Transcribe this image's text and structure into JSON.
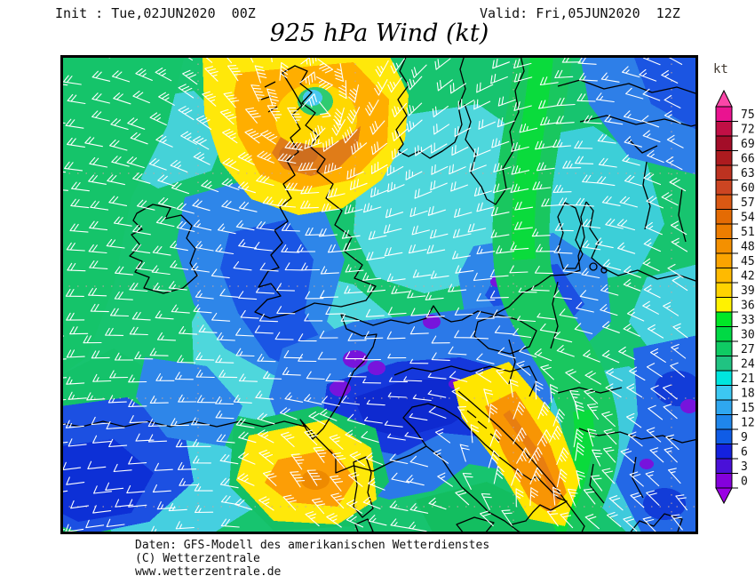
{
  "header": {
    "init": "Init : Tue,02JUN2020  00Z",
    "valid": "Valid: Fri,05JUN2020  12Z"
  },
  "title": "925 hPa Wind (kt)",
  "legend": {
    "unit": "kt",
    "arrow_top_color": "#FA46A8",
    "arrow_bottom_color": "#9B00E4",
    "entries": [
      {
        "value": 75,
        "color": "#EA1390"
      },
      {
        "value": 72,
        "color": "#C10F45"
      },
      {
        "value": 69,
        "color": "#A30D28"
      },
      {
        "value": 66,
        "color": "#AD1B1F"
      },
      {
        "value": 63,
        "color": "#BD3220"
      },
      {
        "value": 60,
        "color": "#CC4522"
      },
      {
        "value": 57,
        "color": "#DA5813"
      },
      {
        "value": 54,
        "color": "#E46B04"
      },
      {
        "value": 51,
        "color": "#ED7D00"
      },
      {
        "value": 48,
        "color": "#F49000"
      },
      {
        "value": 45,
        "color": "#FBA400"
      },
      {
        "value": 42,
        "color": "#FFBA00"
      },
      {
        "value": 39,
        "color": "#FFD300"
      },
      {
        "value": 36,
        "color": "#FFF200"
      },
      {
        "value": 33,
        "color": "#00E726"
      },
      {
        "value": 30,
        "color": "#00D944"
      },
      {
        "value": 27,
        "color": "#0FCB63"
      },
      {
        "value": 24,
        "color": "#20C382"
      },
      {
        "value": 21,
        "color": "#00E5DE"
      },
      {
        "value": 18,
        "color": "#3CC8F2"
      },
      {
        "value": 15,
        "color": "#2FA7F0"
      },
      {
        "value": 12,
        "color": "#1F86EB"
      },
      {
        "value": 9,
        "color": "#0F5CE6"
      },
      {
        "value": 6,
        "color": "#1421DE"
      },
      {
        "value": 3,
        "color": "#4A10D8"
      },
      {
        "value": 0,
        "color": "#8400DC"
      }
    ]
  },
  "map": {
    "parameter": "925 hPa wind speed (kt) with wind barbs over Europe",
    "model": "GFS",
    "barb_color": "#FFFFFF",
    "coast_color": "#000000",
    "grid_color": "#C8A8A0",
    "features": [
      {
        "area": "Cyclone spiral off southern Norway",
        "wind": "45-57 kt core, orange/yellow swirl with calm cyan eye"
      },
      {
        "area": "Atlantic and British Isles",
        "wind": "18-30 kt, green"
      },
      {
        "area": "Ireland / Irish Sea / Wales",
        "wind": "9-15 kt blue minimum"
      },
      {
        "area": "Low Countries / NW Germany",
        "wind": "9-15 kt blue minimum"
      },
      {
        "area": "Alps, Czechia, Po valley",
        "wind": "0-9 kt dark blue-purple calm"
      },
      {
        "area": "Gulf of Lion mistral",
        "wind": "39-48 kt yellow-orange patch"
      },
      {
        "area": "Adriatic bora jet",
        "wind": "39-48 kt yellow-orange band"
      },
      {
        "area": "Sweden-Poland-Balkans corridor",
        "wind": "27-36 kt green band"
      },
      {
        "area": "Iberia and far east of domain",
        "wind": "6-15 kt blue"
      }
    ]
  },
  "footer": {
    "line1": "Daten: GFS-Modell des amerikanischen Wetterdienstes",
    "line2": "(C) Wetterzentrale",
    "line3": "www.wetterzentrale.de"
  }
}
